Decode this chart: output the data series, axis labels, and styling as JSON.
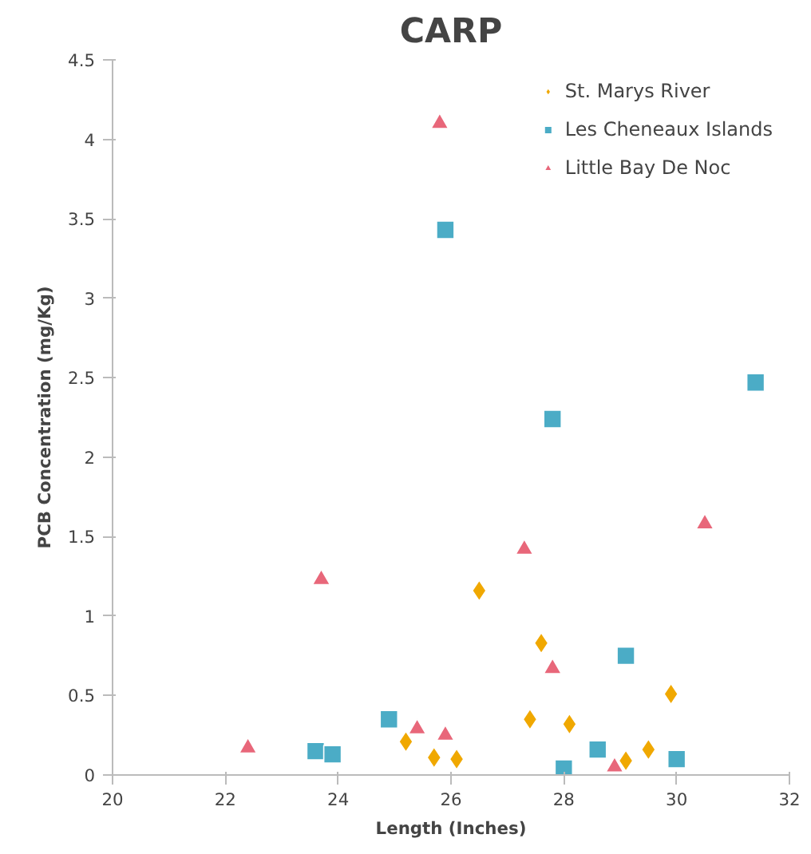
{
  "chart_data": {
    "type": "scatter",
    "title": "CARP",
    "xlabel": "Length (Inches)",
    "ylabel": "PCB Concentration (mg/Kg)",
    "xlim": [
      20,
      32
    ],
    "xticks": [
      20,
      22,
      24,
      26,
      28,
      30,
      32
    ],
    "ylim": [
      0,
      4.5
    ],
    "yticks": [
      0,
      0.5,
      1,
      1.5,
      2,
      2.5,
      3,
      3.5,
      4,
      4.5
    ],
    "grid": false,
    "legend": "top right",
    "series": [
      {
        "name": "St. Marys River",
        "color": "#f0a800",
        "marker": "diamond",
        "x": [
          25.2,
          25.7,
          26.1,
          26.5,
          27.6,
          27.4,
          28.1,
          29.1,
          29.5,
          29.9
        ],
        "values": [
          0.21,
          0.11,
          0.1,
          1.16,
          0.83,
          0.35,
          0.32,
          0.09,
          0.16,
          0.51
        ]
      },
      {
        "name": "Les Cheneaux Islands",
        "color": "#4bacc6",
        "marker": "square",
        "x": [
          25.9,
          23.6,
          23.9,
          24.9,
          27.8,
          29.1,
          28.6,
          28.0,
          30.0,
          31.4
        ],
        "values": [
          3.43,
          0.15,
          0.13,
          0.35,
          2.24,
          0.75,
          0.16,
          0.04,
          0.1,
          2.47
        ]
      },
      {
        "name": "Little Bay De Noc",
        "color": "#e8677a",
        "marker": "triangle",
        "x": [
          25.8,
          22.4,
          23.7,
          25.4,
          25.9,
          27.3,
          27.8,
          28.9,
          30.5
        ],
        "values": [
          4.1,
          0.17,
          1.23,
          0.29,
          0.25,
          1.42,
          0.67,
          0.05,
          1.58
        ]
      }
    ]
  }
}
